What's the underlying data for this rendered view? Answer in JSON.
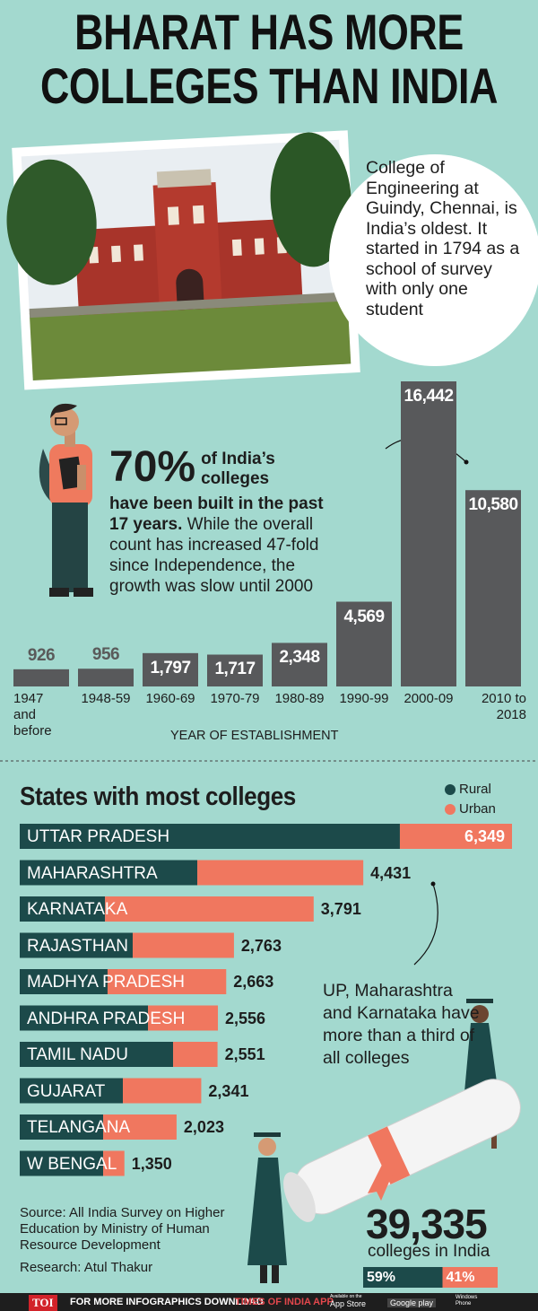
{
  "headline": "BHARAT HAS MORE COLLEGES THAN INDIA",
  "photo_caption": "College of Engineering at Guindy, Chennai, is India’s oldest. It started in 1794 as a school of survey with only one student",
  "callout": {
    "figure": "70%",
    "figure_text": "of India’s colleges",
    "bold_text": "have been built in the past 17 years.",
    "text": "While the overall count has increased 47-fold since Independence, the growth was slow until 2000"
  },
  "annotation": "UP, Maharashtra and Karnataka have more than a third of all colleges",
  "source": "Source: All India Survey on Higher Education by Ministry of Human Resource Development",
  "research": "Research: Atul Thakur",
  "footer": {
    "logo": "TOI",
    "text": "FOR MORE INFOGRAPHICS DOWNLOAD",
    "app": "TIMES OF INDIA APP",
    "badge_small": "Available on the",
    "app_store": "App Store",
    "google_play": "Google play",
    "windows_phone": "Windows Phone"
  },
  "chart_data": [
    {
      "type": "bar",
      "x_label": "YEAR OF ESTABLISHMENT",
      "color": "#58595b",
      "categories": [
        "1947 and before",
        "1948-59",
        "1960-69",
        "1970-79",
        "1980-89",
        "1990-99",
        "2000-09",
        "2010 to 2018"
      ],
      "values": [
        926,
        956,
        1797,
        1717,
        2348,
        4569,
        16442,
        10580
      ],
      "value_labels": [
        "926",
        "956",
        "1,797",
        "1,717",
        "2,348",
        "4,569",
        "16,442",
        "10,580"
      ]
    },
    {
      "type": "stacked_bar_h",
      "title": "States with most colleges",
      "legend": "top-right",
      "categories": [
        "UTTAR PRADESH",
        "MAHARASHTRA",
        "KARNATAKA",
        "RAJASTHAN",
        "MADHYA PRADESH",
        "ANDHRA PRADESH",
        "TAMIL NADU",
        "GUJARAT",
        "TELANGANA",
        "W BENGAL"
      ],
      "series": [
        {
          "name": "Rural",
          "color": "#1c4a4a",
          "values": [
            4903,
            2290,
            1100,
            1457,
            1133,
            1654,
            1978,
            1330,
            1076,
            1076
          ]
        },
        {
          "name": "Urban",
          "color": "#f0775f",
          "values": [
            1446,
            2141,
            2691,
            1306,
            1530,
            902,
            573,
            1011,
            947,
            274
          ]
        }
      ],
      "totals": [
        {
          "value": 6349,
          "label": "6,349"
        },
        {
          "value": 4431,
          "label": "4,431"
        },
        {
          "value": 3791,
          "label": "3,791"
        },
        {
          "value": 2763,
          "label": "2,763"
        },
        {
          "value": 2663,
          "label": "2,663"
        },
        {
          "value": 2556,
          "label": "2,556"
        },
        {
          "value": 2551,
          "label": "2,551"
        },
        {
          "value": 2341,
          "label": "2,341"
        },
        {
          "value": 2023,
          "label": "2,023"
        },
        {
          "value": 1350,
          "label": "1,350"
        }
      ]
    },
    {
      "type": "stacked_bar",
      "title": "39,335",
      "subtitle": "colleges in India",
      "series": [
        {
          "color": "#1c4a4a",
          "values": [
            59
          ],
          "value_labels": [
            "59%"
          ]
        },
        {
          "color": "#f0775f",
          "values": [
            41
          ],
          "value_labels": [
            "41%"
          ]
        }
      ]
    }
  ]
}
